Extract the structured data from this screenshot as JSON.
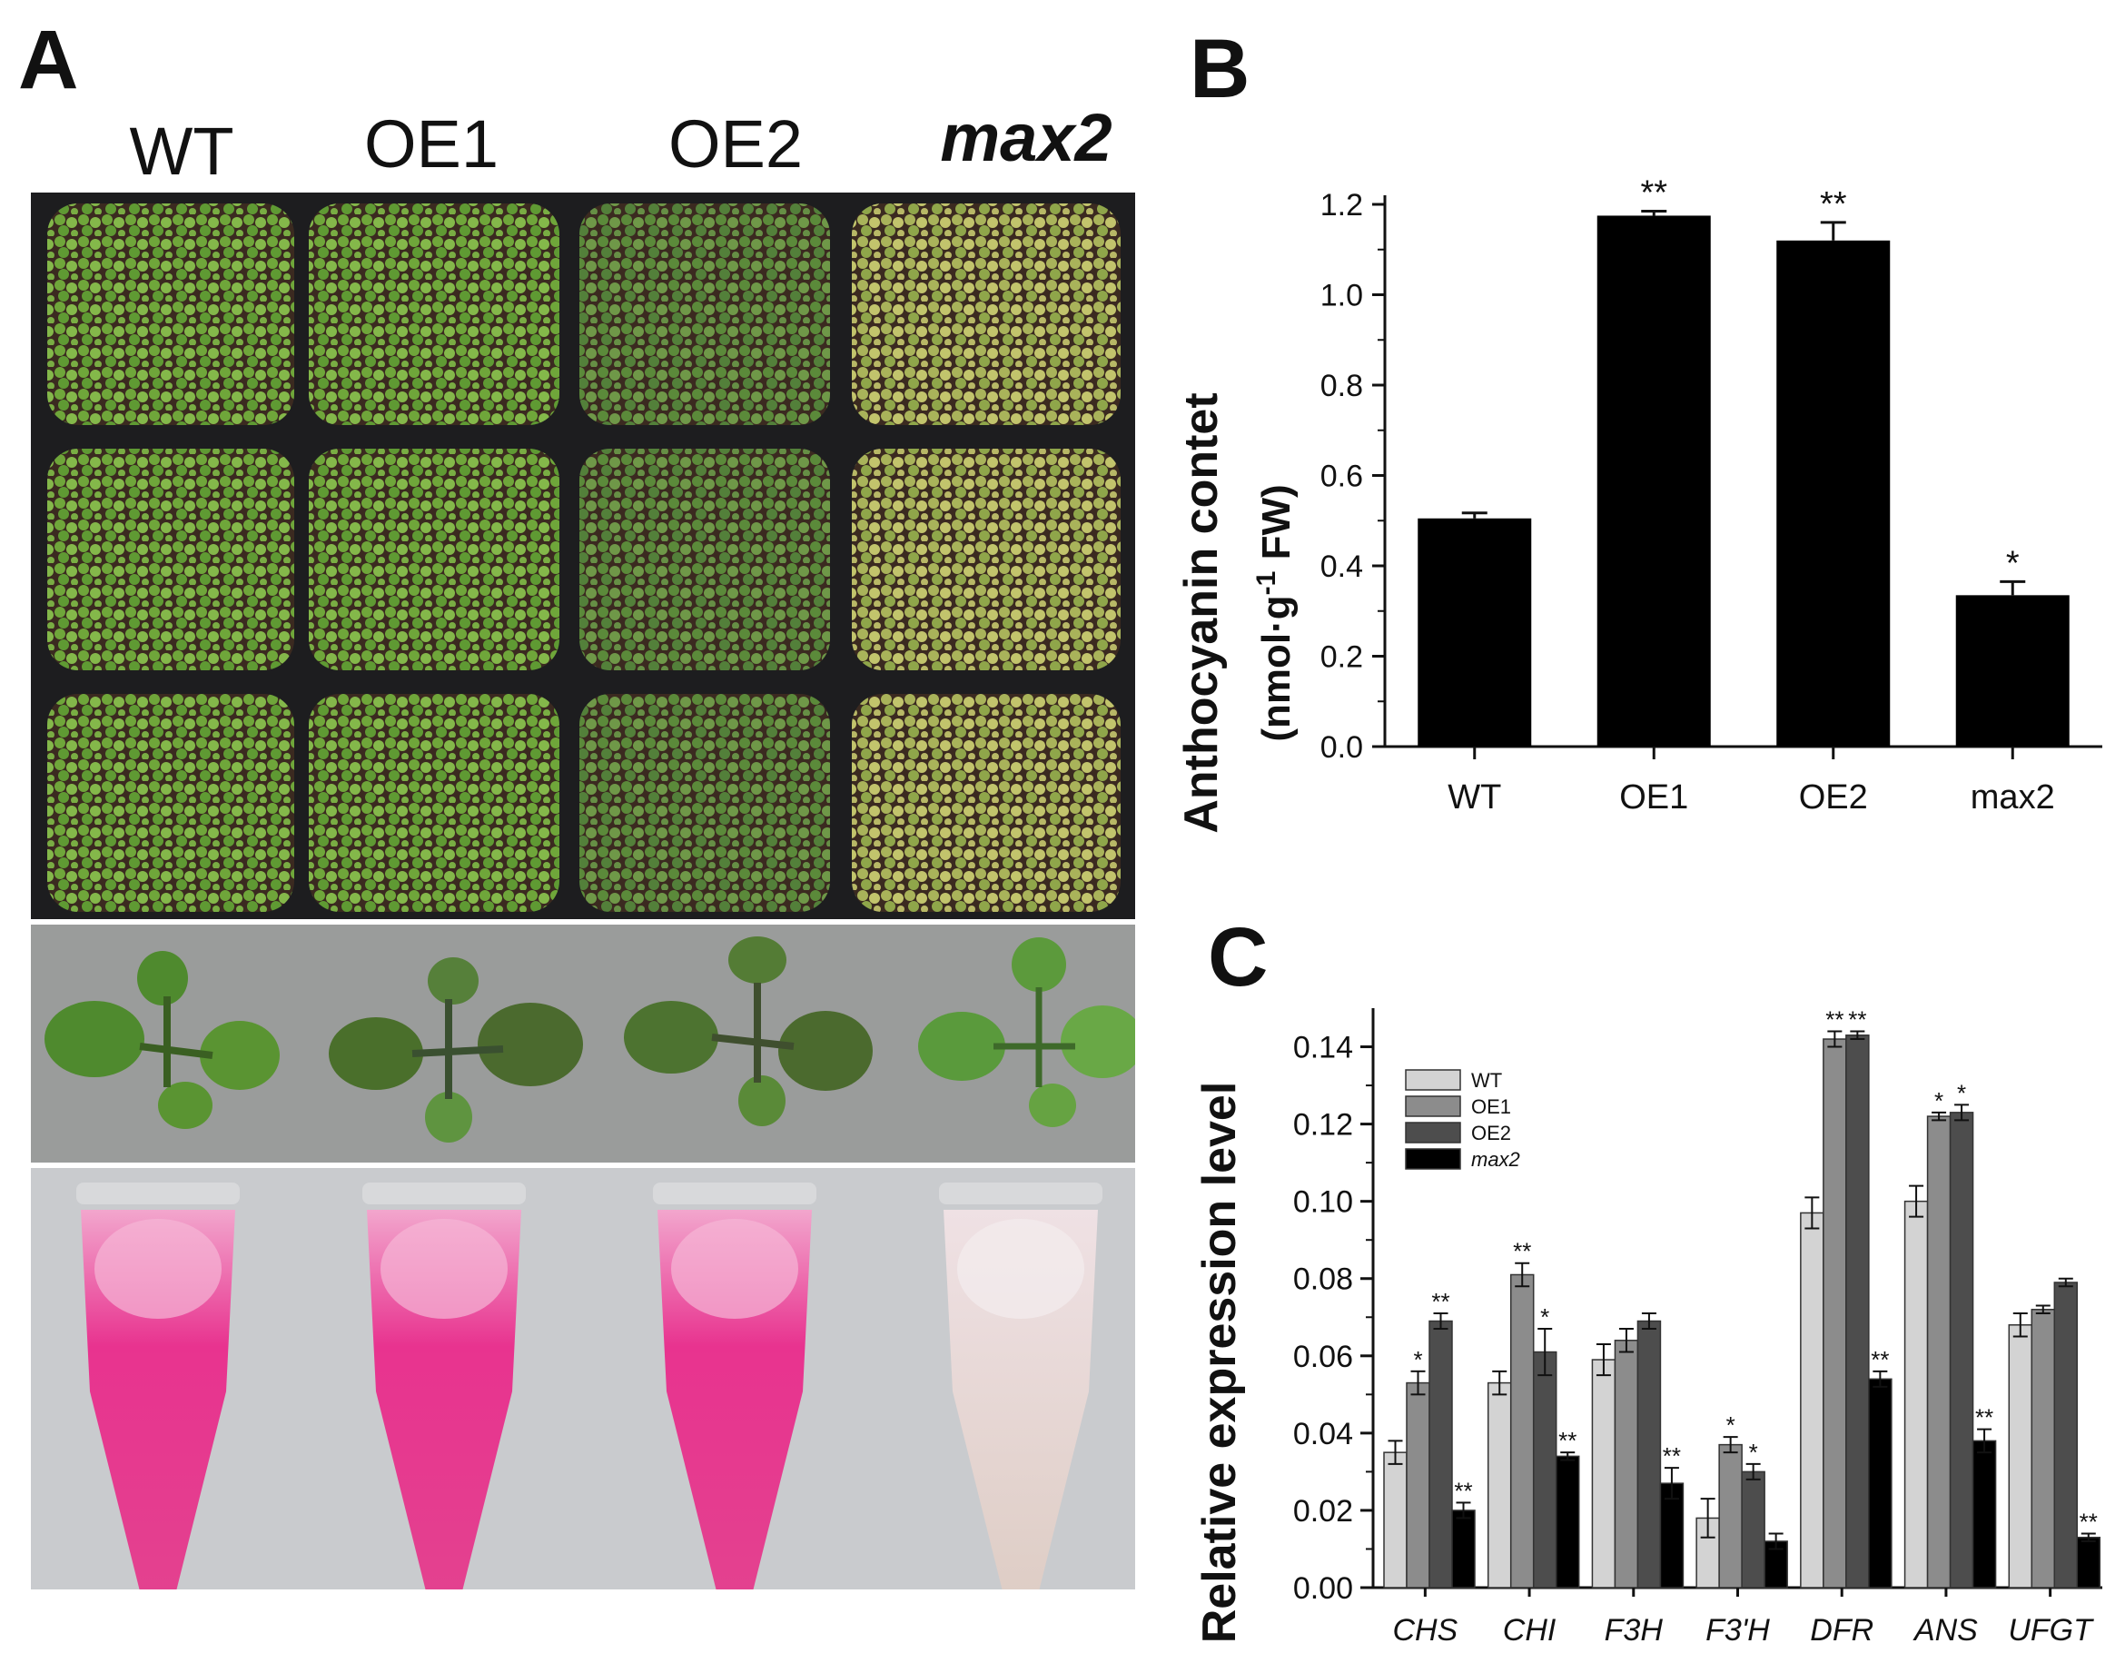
{
  "panel_labels": {
    "a": "A",
    "b": "B",
    "c": "C"
  },
  "panel_a": {
    "genotypes": [
      "WT",
      "OE1",
      "OE2",
      "max2"
    ],
    "photo_colors": {
      "tray": "#1d1d1f",
      "soil": "#3b2a20",
      "seedling": "#6fa63a",
      "seedling_pale": "#a9b35a",
      "grey_bg": "#9a9c9b",
      "tube_bg": "#c9cbce",
      "pink": "#e8338f",
      "pale": "#e5cdd2"
    }
  },
  "chart_data": [
    {
      "type": "bar",
      "categories": [
        "WT",
        "OE1",
        "OE2",
        "max2"
      ],
      "values": [
        0.505,
        1.175,
        1.12,
        0.335
      ],
      "errors": [
        0.012,
        0.01,
        0.04,
        0.03
      ],
      "significance": [
        "",
        "**",
        "**",
        "*"
      ],
      "title": "",
      "xlabel": "",
      "ylabel": "Anthocyanin contet",
      "ylabel2": "(nmol·g",
      "ylabel2_sup": "-1",
      "ylabel2_end": " FW)",
      "ylim": [
        0,
        1.2
      ],
      "yticks": [
        "0.0",
        "0.2",
        "0.4",
        "0.6",
        "0.8",
        "1.0",
        "1.2"
      ],
      "bar_color": "#000000"
    },
    {
      "type": "bar",
      "categories": [
        "CHS",
        "CHI",
        "F3H",
        "F3'H",
        "DFR",
        "ANS",
        "UFGT"
      ],
      "series": [
        {
          "name": "WT",
          "color": "#d3d3d3",
          "values": [
            0.035,
            0.053,
            0.059,
            0.018,
            0.097,
            0.1,
            0.068
          ],
          "errors": [
            0.003,
            0.003,
            0.004,
            0.005,
            0.004,
            0.004,
            0.003
          ],
          "marks": [
            "",
            "",
            "",
            "",
            "",
            "",
            ""
          ]
        },
        {
          "name": "OE1",
          "color": "#8c8c8c",
          "values": [
            0.053,
            0.081,
            0.064,
            0.037,
            0.142,
            0.122,
            0.072
          ],
          "errors": [
            0.003,
            0.003,
            0.003,
            0.002,
            0.002,
            0.001,
            0.001
          ],
          "marks": [
            "*",
            "**",
            "",
            "*",
            "**",
            "*",
            ""
          ]
        },
        {
          "name": "OE2",
          "color": "#4d4d4d",
          "values": [
            0.069,
            0.061,
            0.069,
            0.03,
            0.143,
            0.123,
            0.079
          ],
          "errors": [
            0.002,
            0.006,
            0.002,
            0.002,
            0.001,
            0.002,
            0.001
          ],
          "marks": [
            "**",
            "*",
            "",
            "*",
            "**",
            "*",
            ""
          ]
        },
        {
          "name": "max2",
          "color": "#000000",
          "values": [
            0.02,
            0.034,
            0.027,
            0.012,
            0.054,
            0.038,
            0.013
          ],
          "errors": [
            0.002,
            0.001,
            0.004,
            0.002,
            0.002,
            0.003,
            0.001
          ],
          "marks": [
            "**",
            "**",
            "**",
            "",
            "**",
            "**",
            "**"
          ]
        }
      ],
      "title": "",
      "xlabel": "",
      "ylabel": "Relative expression level",
      "ylim": [
        0,
        0.15
      ],
      "yticks": [
        "0.00",
        "0.02",
        "0.04",
        "0.06",
        "0.08",
        "0.10",
        "0.12",
        "0.14"
      ],
      "legend_position": "top-left"
    }
  ]
}
